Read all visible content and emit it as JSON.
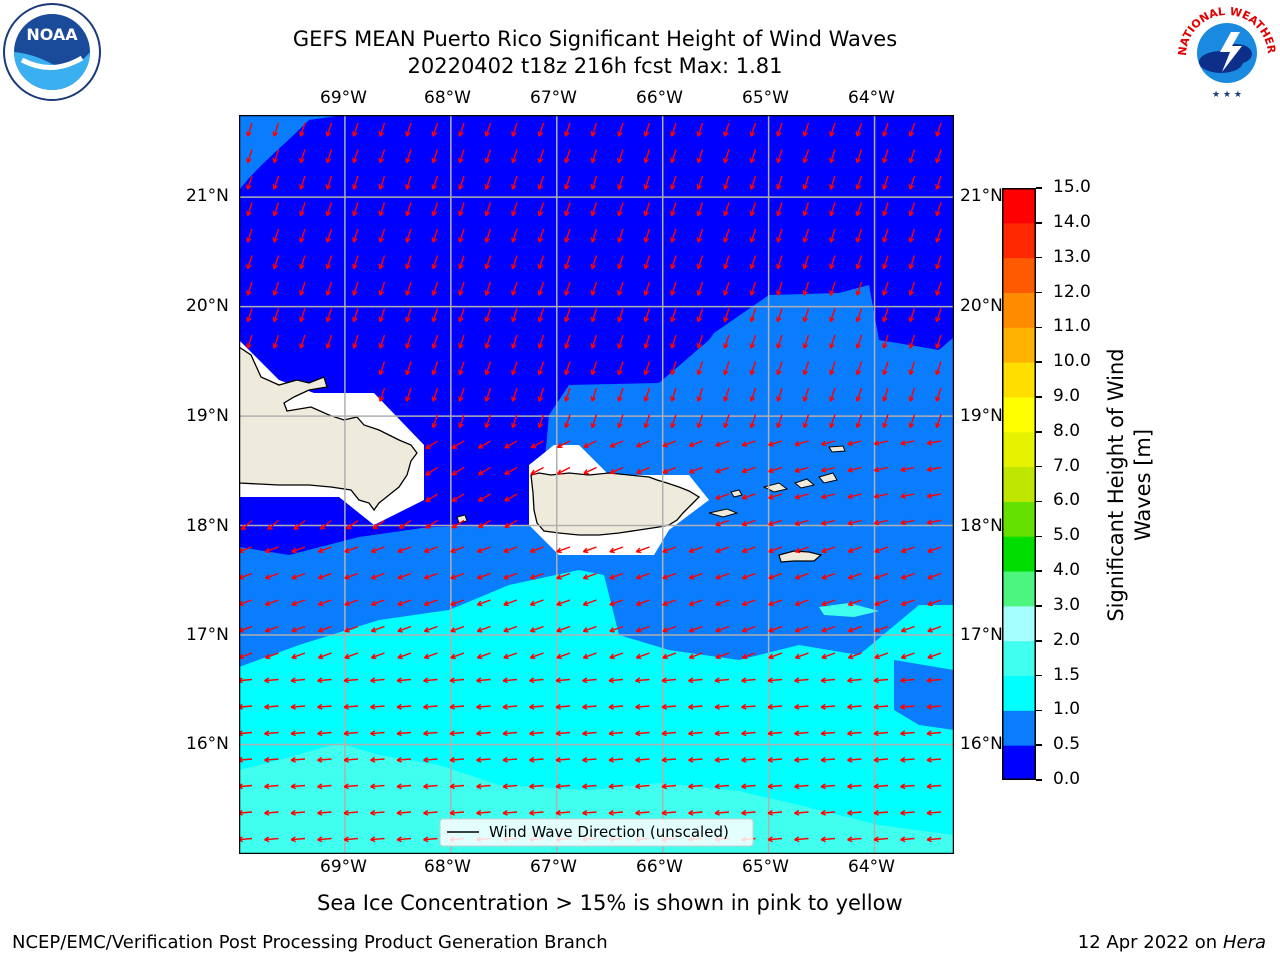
{
  "header": {
    "title_line1": "GEFS MEAN Puerto Rico Significant Height of Wind Waves",
    "title_line2": "20220402 t18z 216h fcst   Max: 1.81"
  },
  "logos": {
    "left_icon": "noaa-logo",
    "left_text": "NOAA",
    "right_icon": "nws-logo",
    "right_text": "NATIONAL WEATHER SERVICE"
  },
  "map": {
    "lon_labels": [
      "69°W",
      "68°W",
      "67°W",
      "66°W",
      "65°W",
      "64°W"
    ],
    "lon_values": [
      -69,
      -68,
      -67,
      -66,
      -65,
      -64
    ],
    "lat_labels": [
      "21°N",
      "20°N",
      "19°N",
      "18°N",
      "17°N",
      "16°N"
    ],
    "lat_values": [
      21,
      20,
      19,
      18,
      17,
      16
    ],
    "extent": {
      "lon": [
        -70,
        -63.25
      ],
      "lat": [
        15,
        21.75
      ]
    },
    "land_color": "#efebdc",
    "vector_color": "#ff0000",
    "gridlines": true,
    "legend": {
      "label": "Wind Wave Direction (unscaled)",
      "placement": "lower-center"
    }
  },
  "colorbar": {
    "label_line1": "Significant Height of Wind",
    "label_line2": "Waves [m]",
    "ticks": [
      "0.0",
      "0.5",
      "1.0",
      "1.5",
      "2.0",
      "3.0",
      "4.0",
      "5.0",
      "6.0",
      "7.0",
      "8.0",
      "9.0",
      "10.0",
      "11.0",
      "12.0",
      "13.0",
      "14.0",
      "15.0"
    ],
    "colors": [
      "#0000ff",
      "#0a7dff",
      "#00ffff",
      "#40ffef",
      "#a6ffff",
      "#4cf480",
      "#00de00",
      "#64e100",
      "#bfe600",
      "#e6f200",
      "#ffff00",
      "#ffde00",
      "#ffb300",
      "#ff8c00",
      "#ff5a00",
      "#ff2800",
      "#ff0000"
    ]
  },
  "footer": {
    "note": "Sea Ice Concentration > 15% is shown in pink to yellow",
    "left": "NCEP/EMC/Verification Post Processing Product Generation Branch",
    "right_date": "12 Apr 2022 on ",
    "right_machine": "Hera"
  }
}
